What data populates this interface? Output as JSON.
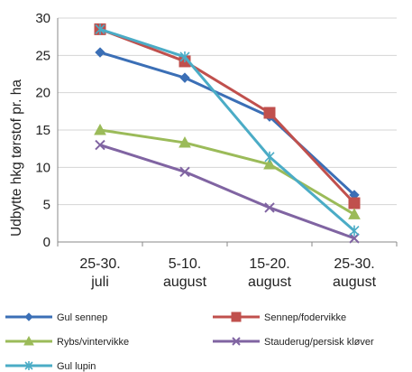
{
  "chart_data": {
    "type": "line",
    "categories": [
      [
        "25-30.",
        "juli"
      ],
      [
        "5-10.",
        "august"
      ],
      [
        "15-20.",
        "august"
      ],
      [
        "25-30.",
        "august"
      ]
    ],
    "ylabel": "Udbytte hkg tørstof pr. ha",
    "ylim": [
      0,
      30
    ],
    "yticks": [
      0,
      5,
      10,
      15,
      20,
      25,
      30
    ],
    "grid": true,
    "legend_position": "bottom",
    "series": [
      {
        "name": "Gul sennep",
        "values": [
          25.4,
          22.0,
          16.8,
          6.3
        ],
        "color": "#3b6fb6",
        "marker": "diamond"
      },
      {
        "name": "Sennep/fodervikke",
        "values": [
          28.5,
          24.2,
          17.3,
          5.2
        ],
        "color": "#c0504d",
        "marker": "square"
      },
      {
        "name": "Rybs/vintervikke",
        "values": [
          15.0,
          13.3,
          10.4,
          3.7
        ],
        "color": "#9bbb59",
        "marker": "triangle"
      },
      {
        "name": "Stauderug/persisk kløver",
        "values": [
          13.0,
          9.4,
          4.6,
          0.5
        ],
        "color": "#8064a2",
        "marker": "x"
      },
      {
        "name": "Gul lupin",
        "values": [
          28.5,
          24.8,
          11.4,
          1.5
        ],
        "color": "#4bacc6",
        "marker": "star"
      }
    ]
  }
}
